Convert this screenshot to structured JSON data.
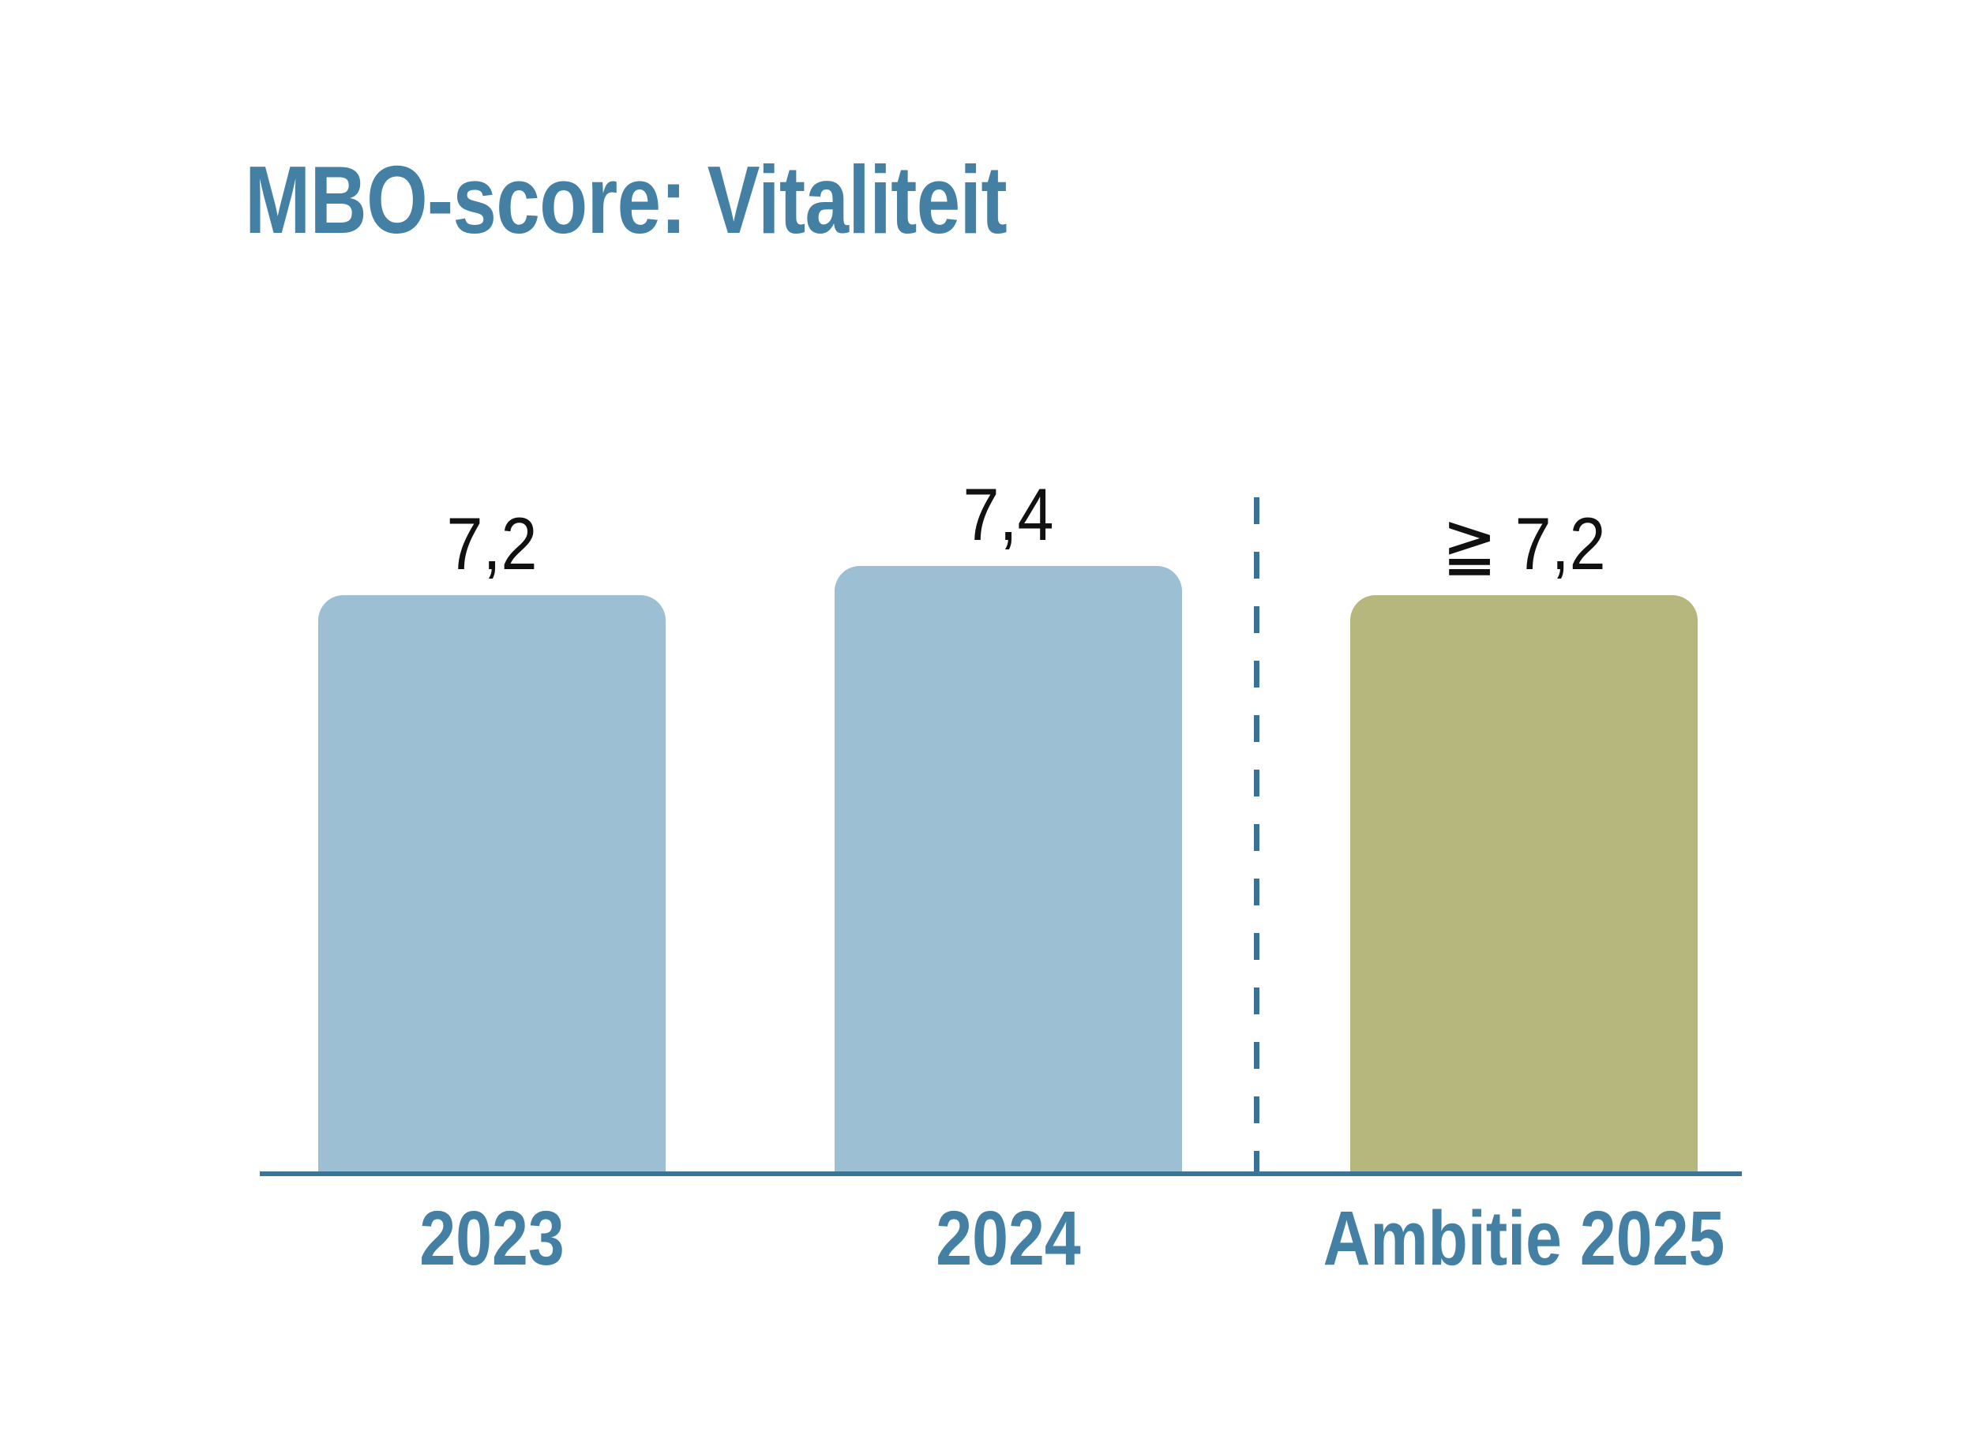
{
  "colors": {
    "background": "#FFFFFF",
    "title_text": "#4480A4",
    "category_label": "#4480A4",
    "value_label": "#111111",
    "axis_line": "#3F7499",
    "divider_line": "#3A7195",
    "bar_blue": "#9CBFD3",
    "bar_olive": "#B5B77C"
  },
  "chart_data": {
    "type": "bar",
    "title": "MBO-score: Vitaliteit",
    "categories": [
      "2023",
      "2024",
      "Ambitie 2025"
    ],
    "values": [
      7.2,
      7.4,
      7.2
    ],
    "value_labels": [
      "7,2",
      "7,4",
      "≧ 7,2"
    ],
    "bar_colors": [
      "#9CBFD3",
      "#9CBFD3",
      "#B5B77C"
    ],
    "value_axis_visible": false,
    "grid": false,
    "legend": false,
    "divider": {
      "style": "dashed-vertical",
      "position": "between 2024 and Ambitie 2025"
    }
  }
}
